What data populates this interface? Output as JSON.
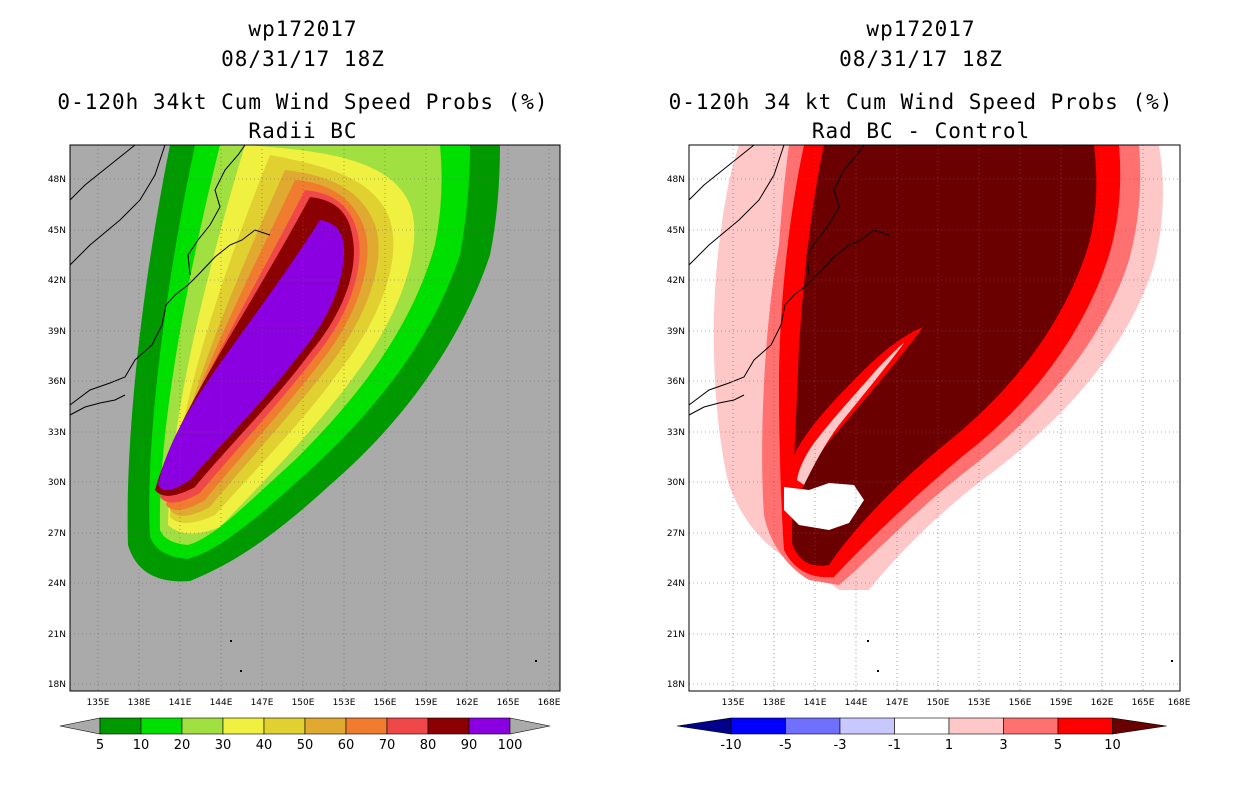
{
  "left": {
    "title_line1": "wp172017",
    "title_line2": "08/31/17 18Z",
    "title_line3": "0-120h 34kt Cum Wind Speed Probs (%)",
    "title_line4": "Radii BC",
    "background_color": "#aaaaaa",
    "colorbar": {
      "colors": [
        "#009900",
        "#00e000",
        "#a0e040",
        "#f0f040",
        "#e0d030",
        "#e0aa30",
        "#f07c30",
        "#f04848",
        "#8b0000",
        "#8a00e0"
      ],
      "labels": [
        "5",
        "10",
        "20",
        "30",
        "40",
        "50",
        "60",
        "70",
        "80",
        "90",
        "100"
      ],
      "arrow_colors": [
        "#aaaaaa",
        "#aaaaaa"
      ]
    }
  },
  "right": {
    "title_line1": "wp172017",
    "title_line2": "08/31/17 18Z",
    "title_line3": "0-120h 34 kt Cum Wind Speed Probs (%)",
    "title_line4": "Rad BC - Control",
    "background_color": "#ffffff",
    "colorbar": {
      "colors": [
        "#0000ff",
        "#7070ff",
        "#c8c8ff",
        "#ffffff",
        "#ffc8c8",
        "#ff7070",
        "#ff0000"
      ],
      "labels": [
        "-10",
        "-5",
        "-3",
        "-1",
        "1",
        "3",
        "5",
        "10"
      ],
      "arrow_colors": [
        "#00008b",
        "#6b0000"
      ]
    }
  },
  "map": {
    "lon_ticks": [
      "135E",
      "138E",
      "141E",
      "144E",
      "147E",
      "150E",
      "153E",
      "156E",
      "159E",
      "162E",
      "165E",
      "168E"
    ],
    "lat_ticks": [
      "18N",
      "21N",
      "24N",
      "27N",
      "30N",
      "33N",
      "36N",
      "39N",
      "42N",
      "45N",
      "48N"
    ]
  }
}
